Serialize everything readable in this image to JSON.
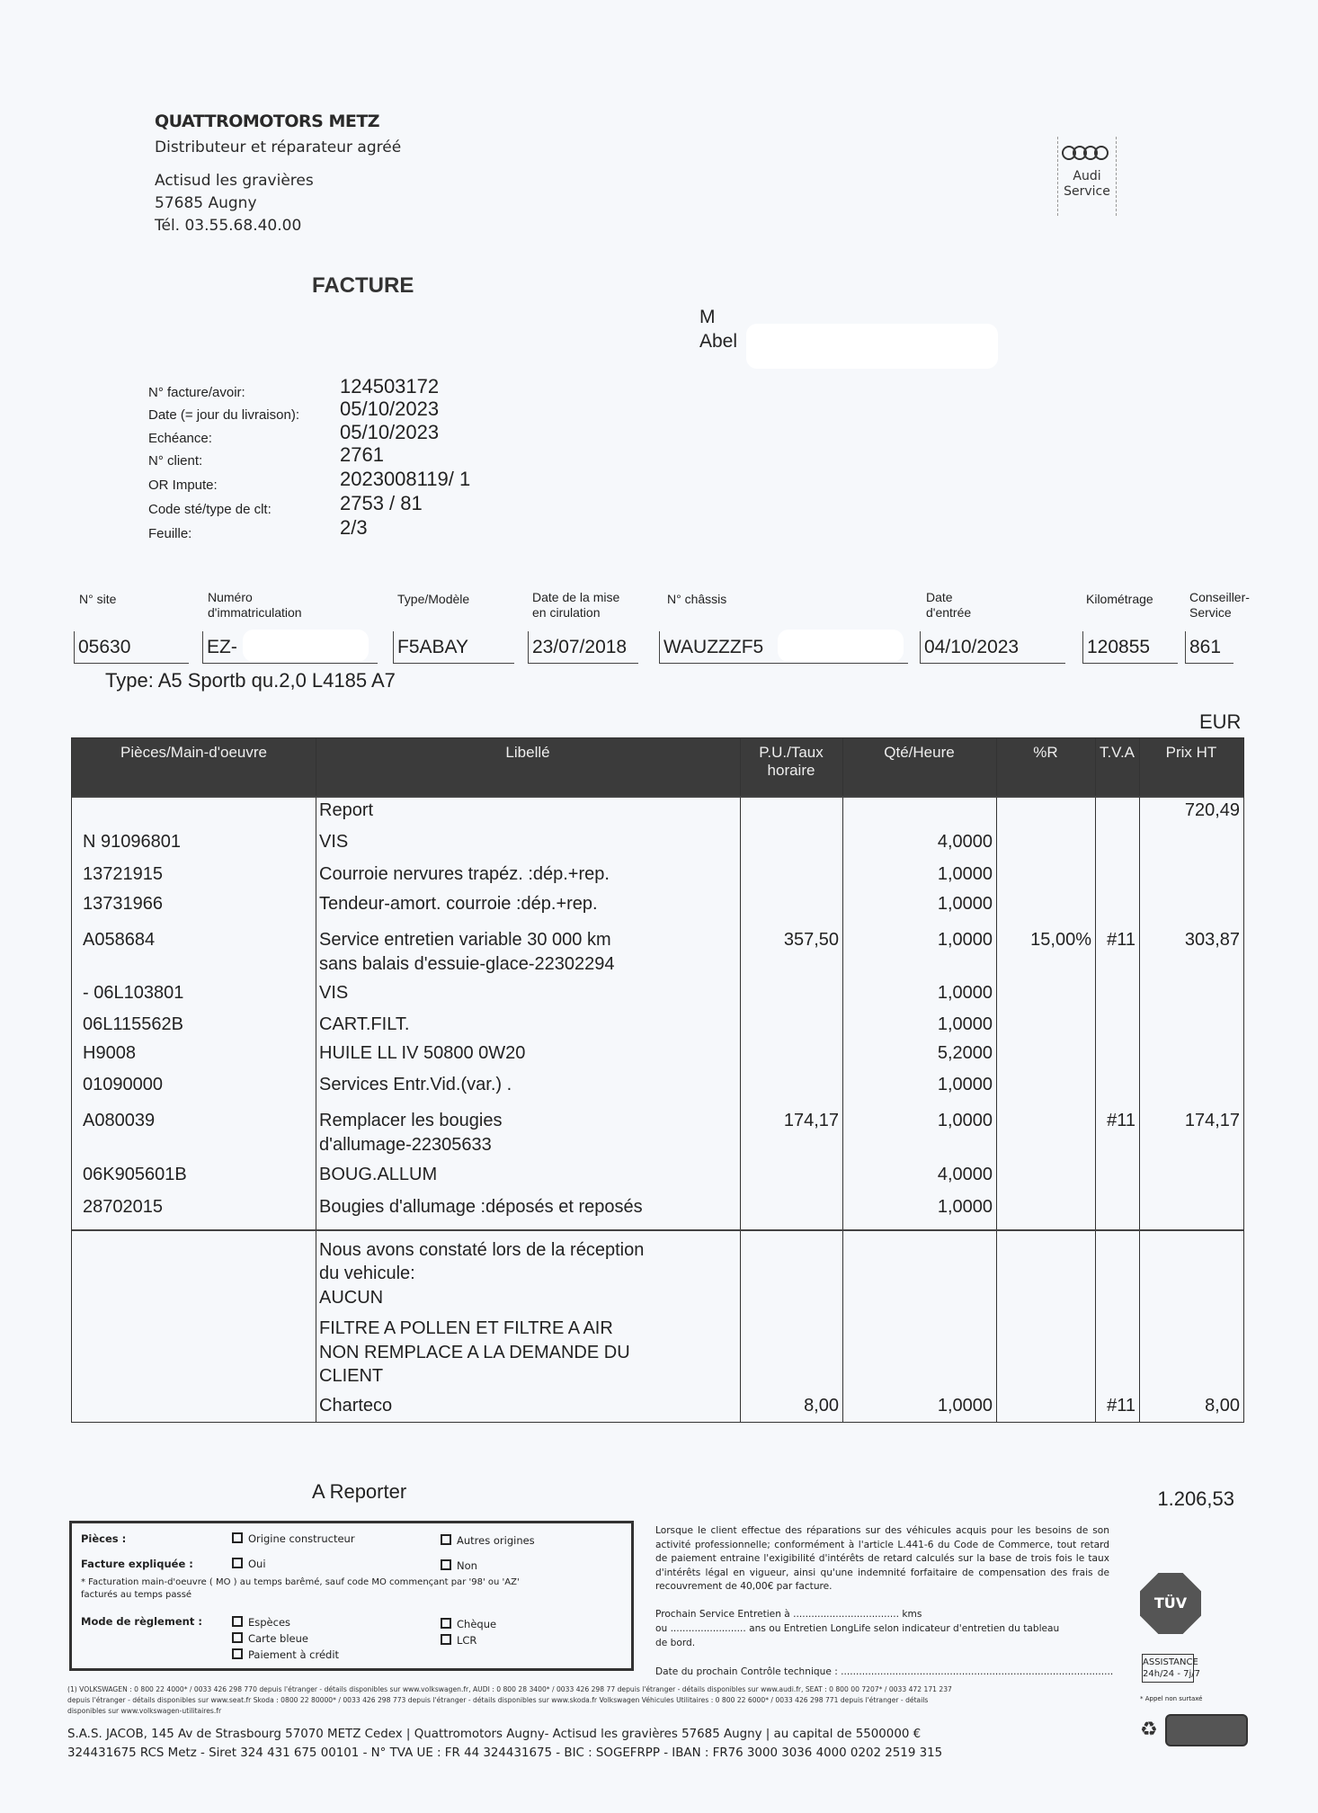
{
  "company": {
    "name": "QUATTROMOTORS METZ",
    "tagline": "Distributeur et réparateur agréé",
    "address_line1": "Actisud les gravières",
    "address_line2": "57685 Augny",
    "phone": "Tél. 03.55.68.40.00"
  },
  "brand": {
    "name": "Audi",
    "sub": "Service",
    "icon": "audi-rings-icon"
  },
  "document_title": "FACTURE",
  "client": {
    "salutation": "M",
    "name": "Abel"
  },
  "invoice_info": [
    {
      "label": "N° facture/avoir:",
      "value": "124503172"
    },
    {
      "label": "Date (= jour du livraison):",
      "value": "05/10/2023"
    },
    {
      "label": "Echéance:",
      "value": "05/10/2023"
    },
    {
      "label": "N° client:",
      "value": "2761"
    },
    {
      "label": "OR Impute:",
      "value": "2023008119/ 1"
    },
    {
      "label": "Code sté/type de clt:",
      "value": "2753 / 81"
    },
    {
      "label": "Feuille:",
      "value": "2/3"
    }
  ],
  "vehicle": {
    "headers": [
      "N° site",
      "Numéro\nd'immatriculation",
      "Type/Modèle",
      "Date de la mise\nen cirulation",
      "N° châssis",
      "Date\nd'entrée",
      "Kilométrage",
      "Conseiller-\nService"
    ],
    "values": [
      "05630",
      "EZ-",
      "F5ABAY",
      "23/07/2018",
      "WAUZZZF5",
      "04/10/2023",
      "120855",
      "861"
    ],
    "type_line": "Type: A5 Sportb qu.2,0 L4185 A7"
  },
  "currency": "EUR",
  "table": {
    "headers": [
      "Pièces/Main-d'oeuvre",
      "Libellé",
      "P.U./Taux\nhoraire",
      "Qté/Heure",
      "%R",
      "T.V.A",
      "Prix HT"
    ],
    "rows": [
      {
        "code": "",
        "libelle": [
          "Report"
        ],
        "pu": "",
        "qte": "",
        "r": "",
        "tva": "",
        "prix": "720,49"
      },
      {
        "code": "N 91096801",
        "libelle": [
          "VIS"
        ],
        "pu": "",
        "qte": "4,0000",
        "r": "",
        "tva": "",
        "prix": ""
      },
      {
        "code": "13721915",
        "libelle": [
          "Courroie nervures trapéz. :dép.+rep."
        ],
        "pu": "",
        "qte": "1,0000",
        "r": "",
        "tva": "",
        "prix": ""
      },
      {
        "code": "13731966",
        "libelle": [
          "Tendeur-amort. courroie :dép.+rep."
        ],
        "pu": "",
        "qte": "1,0000",
        "r": "",
        "tva": "",
        "prix": ""
      },
      {
        "code": "A058684",
        "libelle": [
          "Service entretien variable 30 000 km",
          "sans balais d'essuie-glace-22302294"
        ],
        "pu": "357,50",
        "qte": "1,0000",
        "r": "15,00%",
        "tva": "#11",
        "prix": "303,87"
      },
      {
        "code": "- 06L103801",
        "libelle": [
          "VIS"
        ],
        "pu": "",
        "qte": "1,0000",
        "r": "",
        "tva": "",
        "prix": ""
      },
      {
        "code": "06L115562B",
        "libelle": [
          "CART.FILT."
        ],
        "pu": "",
        "qte": "1,0000",
        "r": "",
        "tva": "",
        "prix": ""
      },
      {
        "code": "H9008",
        "libelle": [
          "HUILE LL IV 50800 0W20"
        ],
        "pu": "",
        "qte": "5,2000",
        "r": "",
        "tva": "",
        "prix": ""
      },
      {
        "code": "01090000",
        "libelle": [
          "Services Entr.Vid.(var.) ."
        ],
        "pu": "",
        "qte": "1,0000",
        "r": "",
        "tva": "",
        "prix": ""
      },
      {
        "code": "A080039",
        "libelle": [
          "Remplacer les bougies",
          "d'allumage-22305633"
        ],
        "pu": "174,17",
        "qte": "1,0000",
        "r": "",
        "tva": "#11",
        "prix": "174,17"
      },
      {
        "code": "06K905601B",
        "libelle": [
          "BOUG.ALLUM"
        ],
        "pu": "",
        "qte": "4,0000",
        "r": "",
        "tva": "",
        "prix": ""
      },
      {
        "code": "28702015",
        "libelle": [
          "Bougies d'allumage :déposés et reposés"
        ],
        "pu": "",
        "qte": "1,0000",
        "r": "",
        "tva": "",
        "prix": ""
      },
      {
        "code": "",
        "libelle": [
          "Nous avons constaté lors de la réception",
          "du vehicule:",
          "AUCUN",
          "FILTRE A POLLEN ET FILTRE A AIR",
          "NON REMPLACE A LA DEMANDE DU",
          "CLIENT"
        ],
        "pu": "",
        "qte": "",
        "r": "",
        "tva": "",
        "prix": ""
      },
      {
        "code": "",
        "libelle": [
          "Charteco"
        ],
        "pu": "8,00",
        "qte": "1,0000",
        "r": "",
        "tva": "#11",
        "prix": "8,00"
      }
    ]
  },
  "carry_forward": {
    "label": "A Reporter",
    "value": "1.206,53"
  },
  "checkbox_box": {
    "pieces_label": "Pièces :",
    "pieces_options": [
      "Origine constructeur",
      "Autres origines"
    ],
    "explained_label": "Facture expliquée :",
    "explained_options": [
      "Oui",
      "Non"
    ],
    "note_line1": "* Facturation main-d'oeuvre ( MO ) au temps barêmé, sauf code MO commençant par '98' ou 'AZ'",
    "note_line2": "facturés au temps passé",
    "payment_label": "Mode de règlement :",
    "payment_options": [
      "Espèces",
      "Carte bleue",
      "Paiement à crédit",
      "Chèque",
      "LCR"
    ]
  },
  "legal_text": "Lorsque le client effectue des réparations sur des véhicules acquis pour les besoins de son activité professionnelle; conformément à l'article L.441-6 du Code de Commerce, tout retard de paiement entraine l'exigibilité d'intérêts de retard calculés sur la base de trois fois le taux d'intérêts légal en vigueur, ainsi qu'une indemnité forfaitaire de compensation des frais de recouvrement de 40,00€ par facture.",
  "next_service_line1": "Prochain Service Entretien à ................................... kms",
  "next_service_line2": "ou ......................... ans ou Entretien LongLife selon indicateur d'entretien du tableau",
  "next_service_line3": "de bord.",
  "next_inspection": "Date du prochain Contrôle technique : ..........................................................................................",
  "badges": {
    "tuv": "TÜV",
    "assistance_line1": "ASSISTANCE",
    "assistance_line2": "24h/24 - 7j/7",
    "appel": "* Appel non surtaxé"
  },
  "small_print": [
    "(1) VOLKSWAGEN : 0 800 22 4000* / 0033 426 298 770 depuis l'étranger - détails disponibles sur www.volkswagen.fr, AUDI : 0 800 28 3400* / 0033 426 298 77 depuis l'étranger - détails disponibles sur www.audi.fr, SEAT : 0 800 00 7207* / 0033 472 171 237",
    "depuis l'étranger - détails disponibles sur www.seat.fr   Skoda : 0800 22 80000* / 0033 426 298 773 depuis l'étranger - détails disponibles sur www.skoda.fr   Volkswagen Véhicules Utilitaires : 0 800 22 6000* / 0033 426 298 771 depuis l'étranger - détails",
    "disponibles sur www.volkswagen-utilitaires.fr"
  ],
  "company_footer": [
    "S.A.S. JACOB, 145 Av de Strasbourg 57070 METZ Cedex | Quattromotors Augny- Actisud les gravières 57685 Augny | au capital de 5500000 €",
    "324431675 RCS Metz - Siret 324 431 675 00101 - N° TVA UE : FR 44 324431675 - BIC : SOGEFRPP - IBAN :  FR76 3000 3036 4000 0202 2519 315"
  ]
}
